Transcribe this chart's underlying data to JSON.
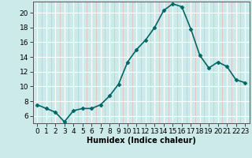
{
  "x": [
    0,
    1,
    2,
    3,
    4,
    5,
    6,
    7,
    8,
    9,
    10,
    11,
    12,
    13,
    14,
    15,
    16,
    17,
    18,
    19,
    20,
    21,
    22,
    23
  ],
  "y": [
    7.5,
    7.0,
    6.5,
    5.2,
    6.7,
    7.0,
    7.0,
    7.5,
    8.7,
    10.3,
    13.3,
    15.0,
    16.3,
    18.0,
    20.3,
    21.2,
    20.8,
    17.8,
    14.2,
    12.5,
    13.3,
    12.7,
    10.9,
    10.5
  ],
  "line_color": "#006666",
  "marker": "D",
  "marker_size": 2.5,
  "xlabel": "Humidex (Indice chaleur)",
  "ylim": [
    5.0,
    21.5
  ],
  "xlim": [
    -0.5,
    23.5
  ],
  "yticks": [
    6,
    8,
    10,
    12,
    14,
    16,
    18,
    20
  ],
  "xtick_labels": [
    "0",
    "1",
    "2",
    "3",
    "4",
    "5",
    "6",
    "7",
    "8",
    "9",
    "10",
    "11",
    "12",
    "13",
    "14",
    "15",
    "16",
    "17",
    "18",
    "19",
    "20",
    "21",
    "22",
    "23"
  ],
  "bg_color": "#cdeaea",
  "grid_major_color": "#ffffff",
  "grid_minor_color": "#e8b8b8",
  "label_fontsize": 7,
  "tick_fontsize": 6.5,
  "line_width": 1.2
}
